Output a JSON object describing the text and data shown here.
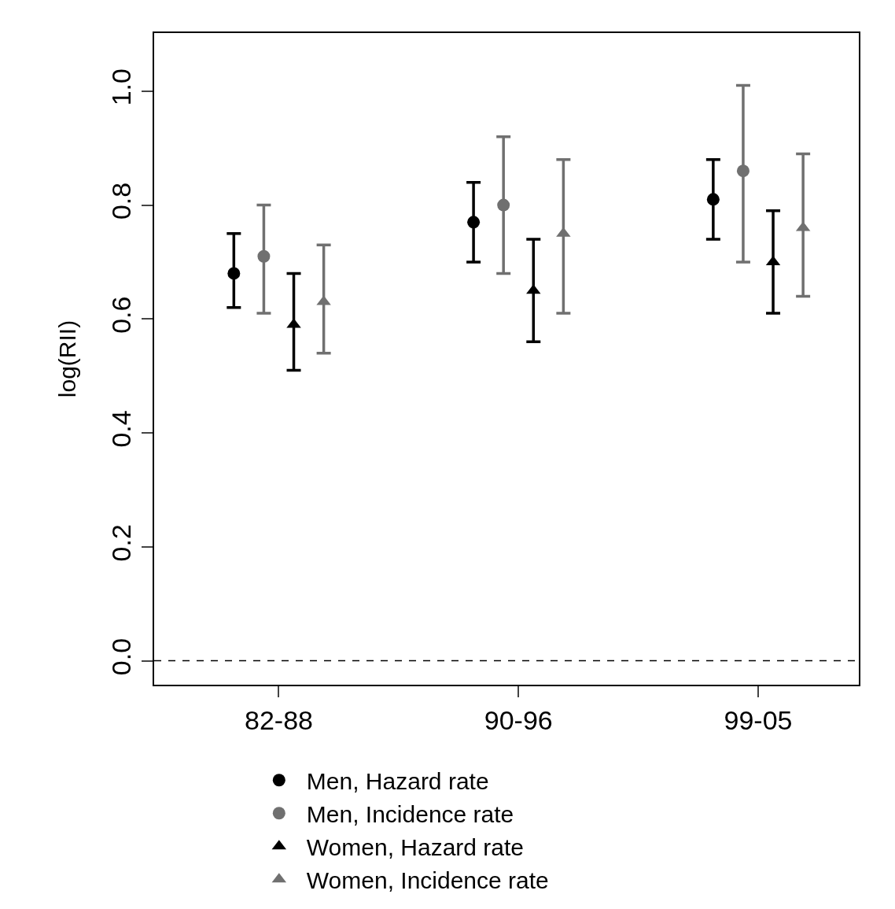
{
  "chart_data": {
    "type": "scatter",
    "ylabel": "log(RII)",
    "categories": [
      "82-88",
      "90-96",
      "99-05"
    ],
    "ylim": [
      -0.042,
      1.102
    ],
    "yticks": [
      {
        "value": 0,
        "label": "0.0"
      },
      {
        "value": 0.2,
        "label": "0.2"
      },
      {
        "value": 0.4,
        "label": "0.4"
      },
      {
        "value": 0.6,
        "label": "0.6"
      },
      {
        "value": 0.8,
        "label": "0.8"
      },
      {
        "value": 1,
        "label": "1.0"
      }
    ],
    "grid": false,
    "legend": "bottom",
    "ref_lines": [
      {
        "axis": "y",
        "value": 0,
        "color": "#000000",
        "line_style": "dashed"
      }
    ],
    "series": [
      {
        "name": "Men, Hazard rate",
        "color": "#000000",
        "marker": "circle",
        "values": [
          0.68,
          0.77,
          0.81
        ],
        "errors": [
          [
            0.62,
            0.75
          ],
          [
            0.7,
            0.84
          ],
          [
            0.74,
            0.88
          ]
        ]
      },
      {
        "name": "Men, Incidence rate",
        "color": "#707070",
        "marker": "circle",
        "values": [
          0.71,
          0.8,
          0.86
        ],
        "errors": [
          [
            0.61,
            0.8
          ],
          [
            0.68,
            0.92
          ],
          [
            0.7,
            1.01
          ]
        ]
      },
      {
        "name": "Women, Hazard rate",
        "color": "#000000",
        "marker": "triangle",
        "values": [
          0.59,
          0.65,
          0.7
        ],
        "errors": [
          [
            0.51,
            0.68
          ],
          [
            0.56,
            0.74
          ],
          [
            0.61,
            0.79
          ]
        ]
      },
      {
        "name": "Women, Incidence rate",
        "color": "#707070",
        "marker": "triangle",
        "values": [
          0.63,
          0.75,
          0.76
        ],
        "errors": [
          [
            0.54,
            0.73
          ],
          [
            0.61,
            0.88
          ],
          [
            0.64,
            0.89
          ]
        ]
      }
    ]
  }
}
